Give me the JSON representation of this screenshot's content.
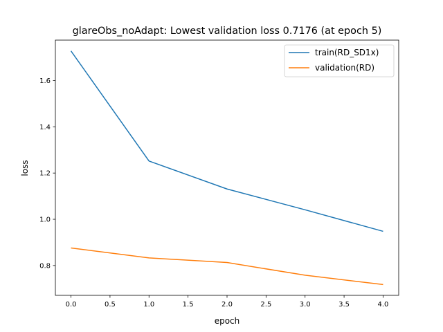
{
  "chart_data": {
    "type": "line",
    "title": "glareObs_noAdapt: Lowest validation loss 0.7176 (at epoch 5)",
    "xlabel": "epoch",
    "ylabel": "loss",
    "x": [
      0,
      1,
      2,
      3,
      4
    ],
    "xlim": [
      -0.2,
      4.2
    ],
    "ylim": [
      0.671,
      1.775
    ],
    "xticks": [
      0.0,
      0.5,
      1.0,
      1.5,
      2.0,
      2.5,
      3.0,
      3.5,
      4.0
    ],
    "yticks": [
      0.8,
      1.0,
      1.2,
      1.4,
      1.6
    ],
    "grid": false,
    "legend_position": "top-right",
    "series": [
      {
        "name": "train(RD_SD1x)",
        "color": "#1f77b4",
        "values": [
          1.728,
          1.252,
          1.131,
          1.041,
          0.948
        ]
      },
      {
        "name": "validation(RD)",
        "color": "#ff7f0e",
        "values": [
          0.876,
          0.833,
          0.813,
          0.758,
          0.7176
        ]
      }
    ]
  }
}
